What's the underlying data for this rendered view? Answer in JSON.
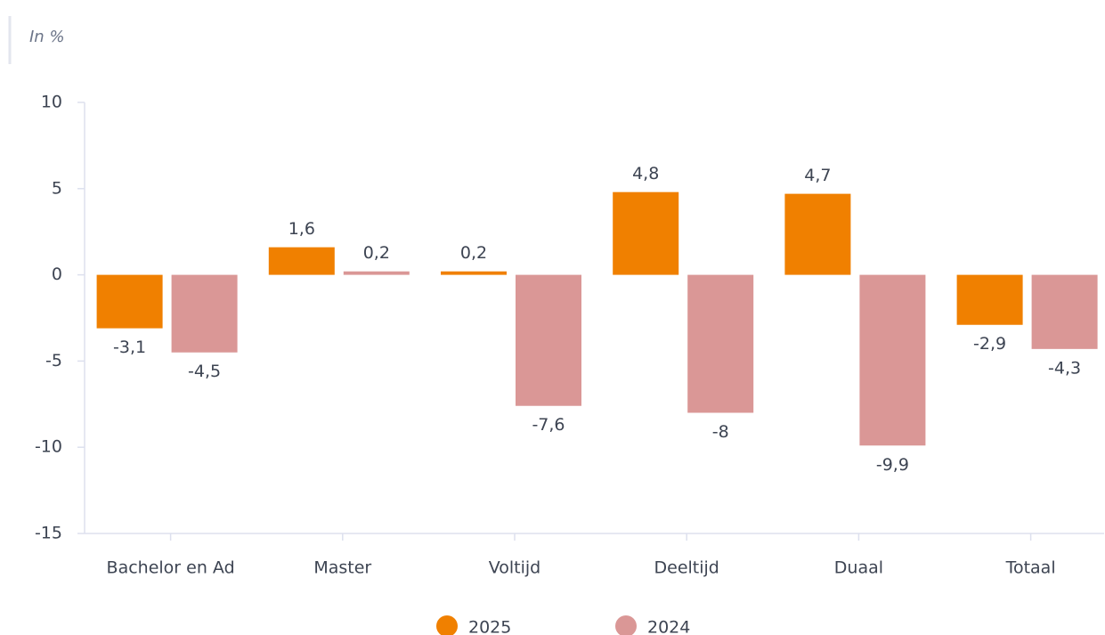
{
  "chart_data": {
    "type": "bar",
    "ylabel": "In %",
    "categories": [
      "Bachelor en Ad",
      "Master",
      "Voltijd",
      "Deeltijd",
      "Duaal",
      "Totaal"
    ],
    "series": [
      {
        "name": "2025",
        "color": "#f08000",
        "values": [
          -3.1,
          1.6,
          0.2,
          4.8,
          4.7,
          -2.9
        ],
        "value_labels": [
          "-3,1",
          "1,6",
          "0,2",
          "4,8",
          "4,7",
          "-2,9"
        ]
      },
      {
        "name": "2024",
        "color": "#da9796",
        "values": [
          -4.5,
          0.2,
          -7.6,
          -8,
          -9.9,
          -4.3
        ],
        "value_labels": [
          "-4,5",
          "0,2",
          "-7,6",
          "-8",
          "-9,9",
          "-4,3"
        ]
      }
    ],
    "ylim": [
      -15,
      10
    ],
    "yticks": [
      -15,
      -10,
      -5,
      0,
      5,
      10
    ],
    "grid": false,
    "legend": "bottom"
  }
}
